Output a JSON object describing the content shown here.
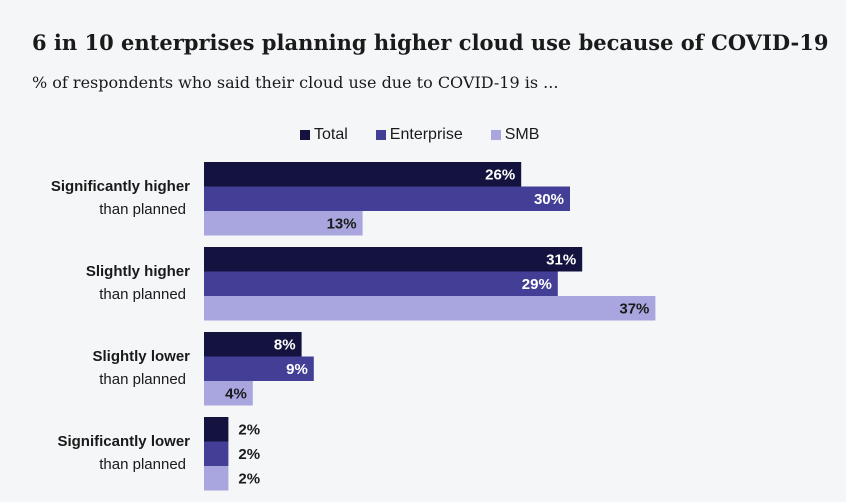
{
  "title": "6 in 10 enterprises planning higher cloud use because of COVID-19",
  "subtitle": "% of respondents who said their cloud use due to COVID-19 is ...",
  "chart_data": {
    "type": "bar",
    "orientation": "horizontal",
    "categories": [
      {
        "line1": "Significantly higher",
        "line2": "than planned"
      },
      {
        "line1": "Slightly higher",
        "line2": "than planned"
      },
      {
        "line1": "Slightly lower",
        "line2": "than planned"
      },
      {
        "line1": "Significantly lower",
        "line2": "than planned"
      }
    ],
    "series": [
      {
        "name": "Total",
        "color": "#14133f",
        "values": [
          26,
          31,
          8,
          2
        ],
        "labels": [
          "26%",
          "31%",
          "8%",
          "2%"
        ]
      },
      {
        "name": "Enterprise",
        "color": "#433f97",
        "values": [
          30,
          29,
          9,
          2
        ],
        "labels": [
          "30%",
          "29%",
          "9%",
          "2%"
        ]
      },
      {
        "name": "SMB",
        "color": "#a9a6df",
        "values": [
          13,
          37,
          4,
          2
        ],
        "labels": [
          "13%",
          "37%",
          "4%",
          "2%"
        ]
      }
    ],
    "xlim": [
      0,
      37
    ],
    "legend_position": "top",
    "grid": false
  }
}
